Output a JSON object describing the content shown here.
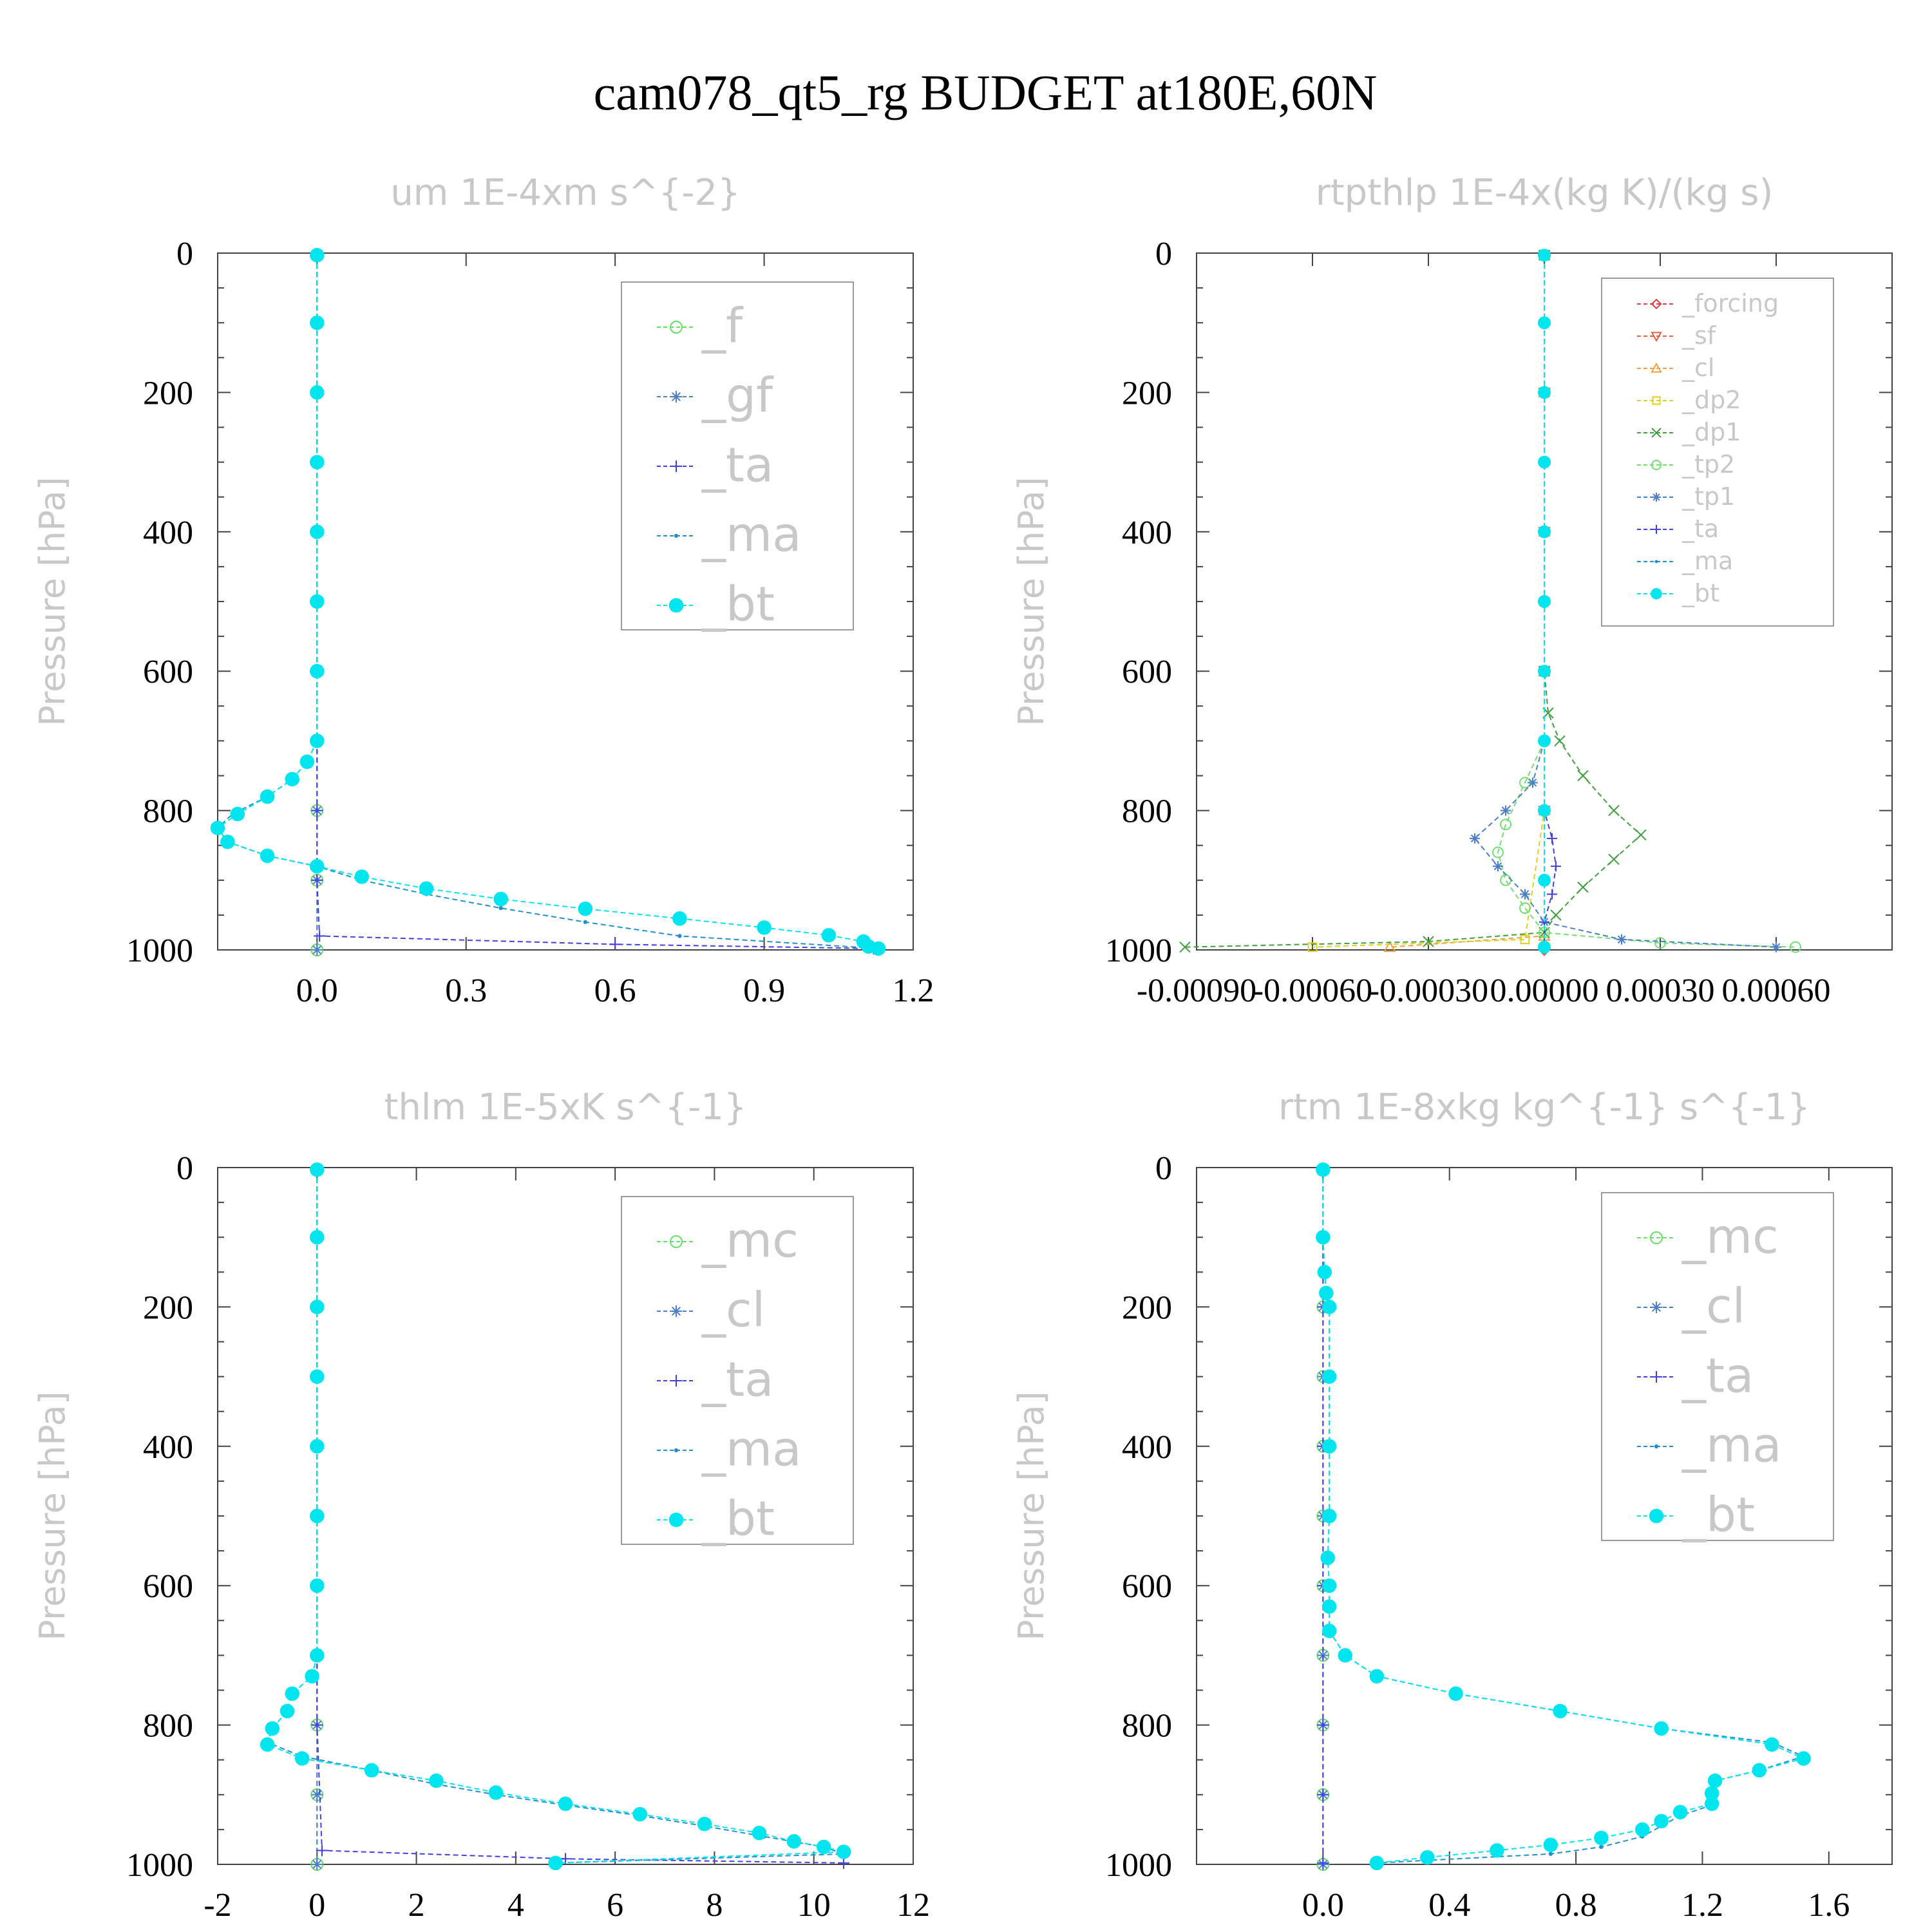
{
  "title": "cam078_qt5_rg  BUDGET at180E,60N",
  "chart_data": [
    {
      "type": "line",
      "title": "um   1E-4xm s^{-2}",
      "ylabel": "Pressure  [hPa]",
      "xlabel": "",
      "xlim": [
        -0.2,
        1.2
      ],
      "ylim": [
        1000,
        0
      ],
      "xticks": [
        0.0,
        0.3,
        0.6,
        0.9,
        1.2
      ],
      "xtick_labels": [
        "0.0",
        "0.3",
        "0.6",
        "0.9",
        "1.2"
      ],
      "yticks": [
        0,
        200,
        400,
        600,
        800,
        1000
      ],
      "ytick_labels": [
        "0",
        "200",
        "400",
        "600",
        "800",
        "1000"
      ],
      "legend_position": "top-right",
      "series": [
        {
          "name": "_f",
          "color": "#66e066",
          "marker": "circle",
          "pressure": [
            3,
            100,
            200,
            300,
            400,
            500,
            600,
            700,
            800,
            900,
            1000
          ],
          "values": [
            0,
            0,
            0,
            0,
            0,
            0,
            0,
            0,
            0,
            0,
            0
          ]
        },
        {
          "name": "_gf",
          "color": "#4a7fc8",
          "marker": "asterisk",
          "pressure": [
            3,
            100,
            200,
            300,
            400,
            500,
            600,
            700,
            800,
            900,
            1000
          ],
          "values": [
            0,
            0,
            0,
            0,
            0,
            0,
            0,
            0,
            0,
            0,
            0
          ]
        },
        {
          "name": "_ta",
          "color": "#4040e0",
          "marker": "plus",
          "pressure": [
            3,
            100,
            200,
            300,
            400,
            500,
            600,
            700,
            800,
            900,
            980,
            992,
            998
          ],
          "values": [
            0,
            0,
            0,
            0,
            0,
            0,
            0,
            0,
            0,
            0,
            0.005,
            0.6,
            1.12
          ]
        },
        {
          "name": "_ma",
          "color": "#2090d0",
          "marker": "dot",
          "pressure": [
            3,
            100,
            200,
            300,
            400,
            500,
            600,
            700,
            730,
            755,
            780,
            805,
            825,
            845,
            865,
            880,
            900,
            920,
            940,
            960,
            980,
            998
          ],
          "values": [
            0,
            0,
            0,
            0,
            0,
            0,
            0,
            0,
            -0.02,
            -0.05,
            -0.1,
            -0.17,
            -0.2,
            -0.18,
            -0.1,
            0,
            0.09,
            0.22,
            0.37,
            0.54,
            0.73,
            1.13
          ]
        },
        {
          "name": "_bt",
          "color": "#00e5ee",
          "marker": "filled-circle",
          "pressure": [
            3,
            100,
            200,
            300,
            400,
            500,
            600,
            700,
            730,
            755,
            780,
            805,
            825,
            845,
            865,
            880,
            895,
            912,
            927,
            941,
            955,
            968,
            979,
            988,
            995,
            998
          ],
          "values": [
            0,
            0,
            0,
            0,
            0,
            0,
            0,
            0,
            -0.02,
            -0.05,
            -0.1,
            -0.16,
            -0.2,
            -0.18,
            -0.1,
            0,
            0.09,
            0.22,
            0.37,
            0.54,
            0.73,
            0.9,
            1.03,
            1.1,
            1.11,
            1.13
          ]
        }
      ]
    },
    {
      "type": "line",
      "title": "rtpthlp   1E-4x(kg K)/(kg s)",
      "ylabel": "Pressure  [hPa]",
      "xlabel": "",
      "xlim": [
        -0.0009,
        0.0009
      ],
      "ylim": [
        1000,
        0
      ],
      "xticks": [
        -0.0009,
        -0.0006,
        -0.0003,
        0.0,
        0.0003,
        0.0006
      ],
      "xtick_labels": [
        "-0.00090",
        "-0.00060",
        "-0.00030",
        "0.00000",
        "0.00030",
        "0.00060"
      ],
      "yticks": [
        0,
        200,
        400,
        600,
        800,
        1000
      ],
      "ytick_labels": [
        "0",
        "200",
        "400",
        "600",
        "800",
        "1000"
      ],
      "legend_position": "top-right",
      "series": [
        {
          "name": "_forcing",
          "color": "#e04040",
          "marker": "diamond",
          "pressure": [
            3,
            200,
            400,
            600,
            800,
            1000
          ],
          "values": [
            0,
            0,
            0,
            0,
            0,
            0
          ]
        },
        {
          "name": "_sf",
          "color": "#e06040",
          "marker": "triangle-down",
          "pressure": [
            3,
            200,
            400,
            600,
            800,
            1000
          ],
          "values": [
            0,
            0,
            0,
            0,
            0,
            0
          ]
        },
        {
          "name": "_cl",
          "color": "#f0a040",
          "marker": "triangle",
          "pressure": [
            3,
            200,
            400,
            600,
            800,
            980,
            996
          ],
          "values": [
            0,
            0,
            0,
            0,
            0,
            0,
            -0.0004
          ]
        },
        {
          "name": "_dp2",
          "color": "#e0d020",
          "marker": "square",
          "pressure": [
            3,
            200,
            400,
            600,
            800,
            985,
            996
          ],
          "values": [
            0,
            0,
            0,
            0,
            0,
            -5e-05,
            -0.0006
          ]
        },
        {
          "name": "_dp1",
          "color": "#40a040",
          "marker": "cross",
          "pressure": [
            3,
            600,
            660,
            700,
            750,
            800,
            835,
            870,
            910,
            950,
            975,
            988,
            996
          ],
          "values": [
            0,
            0,
            1e-05,
            4e-05,
            0.0001,
            0.00018,
            0.00025,
            0.00018,
            0.0001,
            3e-05,
            0.0,
            -0.0003,
            -0.00093
          ]
        },
        {
          "name": "_tp2",
          "color": "#70e070",
          "marker": "circle",
          "pressure": [
            3,
            700,
            760,
            820,
            860,
            900,
            940,
            975,
            990,
            996
          ],
          "values": [
            0,
            0,
            -5e-05,
            -0.0001,
            -0.00012,
            -0.0001,
            -5e-05,
            0.0,
            0.0003,
            0.00065
          ]
        },
        {
          "name": "_tp1",
          "color": "#4a7fc8",
          "marker": "asterisk",
          "pressure": [
            3,
            700,
            760,
            800,
            840,
            880,
            920,
            960,
            985,
            996
          ],
          "values": [
            0,
            0,
            -3e-05,
            -0.0001,
            -0.00018,
            -0.00012,
            -5e-05,
            0.0,
            0.0002,
            0.0006
          ]
        },
        {
          "name": "_ta",
          "color": "#4040e0",
          "marker": "plus",
          "pressure": [
            3,
            800,
            840,
            880,
            920,
            960,
            996
          ],
          "values": [
            0,
            0,
            2e-05,
            3e-05,
            2e-05,
            0.0,
            0.0
          ]
        },
        {
          "name": "_ma",
          "color": "#2090d0",
          "marker": "dot",
          "pressure": [
            3,
            200,
            400,
            600,
            800,
            1000
          ],
          "values": [
            0,
            0,
            0,
            0,
            0,
            0
          ]
        },
        {
          "name": "_bt",
          "color": "#00e5ee",
          "marker": "filled-circle",
          "pressure": [
            3,
            100,
            200,
            300,
            400,
            500,
            600,
            700,
            800,
            900,
            996
          ],
          "values": [
            0,
            0,
            0,
            0,
            0,
            0,
            0,
            0,
            0,
            0,
            0
          ]
        }
      ]
    },
    {
      "type": "line",
      "title": "thlm   1E-5xK s^{-1}",
      "ylabel": "Pressure  [hPa]",
      "xlabel": "",
      "xlim": [
        -2,
        12
      ],
      "ylim": [
        1000,
        0
      ],
      "xticks": [
        -2,
        0,
        2,
        4,
        6,
        8,
        10,
        12
      ],
      "xtick_labels": [
        "-2",
        "0",
        "2",
        "4",
        "6",
        "8",
        "10",
        "12"
      ],
      "yticks": [
        0,
        200,
        400,
        600,
        800,
        1000
      ],
      "ytick_labels": [
        "0",
        "200",
        "400",
        "600",
        "800",
        "1000"
      ],
      "legend_position": "top-right",
      "series": [
        {
          "name": "_mc",
          "color": "#66e066",
          "marker": "circle",
          "pressure": [
            3,
            100,
            200,
            300,
            400,
            500,
            600,
            700,
            800,
            900,
            1000
          ],
          "values": [
            0,
            0,
            0,
            0,
            0,
            0,
            0,
            0,
            0,
            0,
            0
          ]
        },
        {
          "name": "_cl",
          "color": "#4a7fc8",
          "marker": "asterisk",
          "pressure": [
            3,
            100,
            200,
            300,
            400,
            500,
            600,
            700,
            800,
            900,
            1000
          ],
          "values": [
            0,
            0,
            0,
            0,
            0,
            0,
            0,
            0,
            0,
            0,
            0
          ]
        },
        {
          "name": "_ta",
          "color": "#4040e0",
          "marker": "plus",
          "pressure": [
            3,
            200,
            400,
            600,
            800,
            980,
            992,
            998
          ],
          "values": [
            0,
            0,
            0,
            0,
            0,
            0.1,
            5.0,
            10.6
          ]
        },
        {
          "name": "_ma",
          "color": "#2090d0",
          "marker": "dot",
          "pressure": [
            3,
            100,
            200,
            300,
            400,
            500,
            600,
            700,
            730,
            755,
            780,
            805,
            825,
            845,
            865,
            885,
            900,
            915,
            930,
            945,
            960,
            975,
            985,
            998
          ],
          "values": [
            0,
            0,
            0,
            0,
            0,
            0,
            0,
            0,
            -0.1,
            -0.5,
            -0.6,
            -0.9,
            -1.0,
            -0.3,
            1.1,
            2.4,
            3.6,
            5.0,
            6.5,
            7.8,
            9.0,
            10.2,
            10.6,
            4.8
          ]
        },
        {
          "name": "_bt",
          "color": "#00e5ee",
          "marker": "filled-circle",
          "pressure": [
            3,
            100,
            200,
            300,
            400,
            500,
            600,
            700,
            730,
            755,
            780,
            805,
            828,
            848,
            865,
            880,
            897,
            913,
            928,
            942,
            955,
            967,
            975,
            982,
            998
          ],
          "values": [
            0,
            0,
            0,
            0,
            0,
            0,
            0,
            0,
            -0.1,
            -0.5,
            -0.6,
            -0.9,
            -1.0,
            -0.3,
            1.1,
            2.4,
            3.6,
            5.0,
            6.5,
            7.8,
            8.9,
            9.6,
            10.2,
            10.6,
            4.8
          ]
        }
      ]
    },
    {
      "type": "line",
      "title": "rtm   1E-8xkg kg^{-1} s^{-1}",
      "ylabel": "Pressure  [hPa]",
      "xlabel": "",
      "xlim": [
        -0.4,
        1.8
      ],
      "ylim": [
        1000,
        0
      ],
      "xticks": [
        0.0,
        0.4,
        0.8,
        1.2,
        1.6
      ],
      "xtick_labels": [
        "0.0",
        "0.4",
        "0.8",
        "1.2",
        "1.6"
      ],
      "yticks": [
        0,
        200,
        400,
        600,
        800,
        1000
      ],
      "ytick_labels": [
        "0",
        "200",
        "400",
        "600",
        "800",
        "1000"
      ],
      "legend_position": "top-right",
      "series": [
        {
          "name": "_mc",
          "color": "#66e066",
          "marker": "circle",
          "pressure": [
            3,
            100,
            200,
            300,
            400,
            500,
            600,
            700,
            800,
            900,
            1000
          ],
          "values": [
            0,
            0,
            0,
            0,
            0,
            0,
            0,
            0,
            0,
            0,
            0
          ]
        },
        {
          "name": "_cl",
          "color": "#4a7fc8",
          "marker": "asterisk",
          "pressure": [
            3,
            100,
            200,
            300,
            400,
            500,
            600,
            700,
            800,
            900,
            1000
          ],
          "values": [
            0,
            0,
            0,
            0,
            0,
            0,
            0,
            0,
            0,
            0,
            0
          ]
        },
        {
          "name": "_ta",
          "color": "#4040e0",
          "marker": "plus",
          "pressure": [
            3,
            200,
            400,
            600,
            800,
            900,
            998
          ],
          "values": [
            0,
            0,
            0,
            0,
            0,
            0,
            0
          ]
        },
        {
          "name": "_ma",
          "color": "#2090d0",
          "marker": "dot",
          "pressure": [
            3,
            100,
            150,
            180,
            200,
            300,
            400,
            500,
            560,
            600,
            630,
            665,
            700,
            730,
            755,
            780,
            805,
            825,
            845,
            865,
            880,
            900,
            915,
            930,
            945,
            960,
            975,
            985,
            998
          ],
          "values": [
            0,
            0,
            0.005,
            0.01,
            0.02,
            0.02,
            0.02,
            0.02,
            0.015,
            0.02,
            0.02,
            0.02,
            0.07,
            0.17,
            0.42,
            0.75,
            1.07,
            1.42,
            1.52,
            1.38,
            1.24,
            1.23,
            1.23,
            1.13,
            1.07,
            1.01,
            0.88,
            0.72,
            0.17
          ]
        },
        {
          "name": "_bt",
          "color": "#00e5ee",
          "marker": "filled-circle",
          "pressure": [
            3,
            100,
            150,
            180,
            200,
            300,
            400,
            500,
            560,
            600,
            630,
            665,
            700,
            730,
            755,
            780,
            805,
            828,
            848,
            865,
            880,
            898,
            913,
            925,
            938,
            950,
            962,
            972,
            980,
            990,
            998
          ],
          "values": [
            0,
            0,
            0.005,
            0.01,
            0.02,
            0.02,
            0.02,
            0.02,
            0.015,
            0.02,
            0.02,
            0.02,
            0.07,
            0.17,
            0.42,
            0.75,
            1.07,
            1.42,
            1.52,
            1.38,
            1.24,
            1.23,
            1.23,
            1.13,
            1.07,
            1.01,
            0.88,
            0.72,
            0.55,
            0.33,
            0.17
          ]
        }
      ]
    }
  ]
}
